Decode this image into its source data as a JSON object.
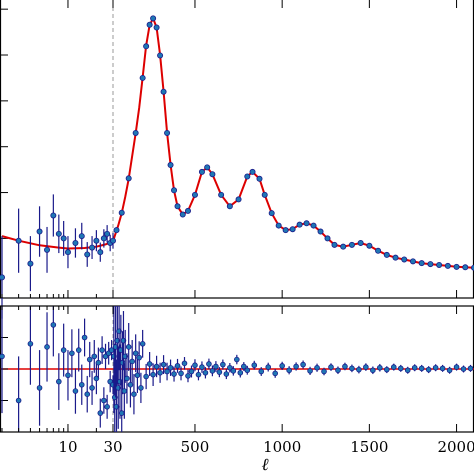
{
  "chart_data": [
    {
      "type": "scatter",
      "panel": "main",
      "title": "",
      "xlabel": "",
      "ylabel": "",
      "x_scale": "log below 30, linear above 30",
      "xlim": [
        2,
        2100
      ],
      "ylim": [
        -300,
        6200
      ],
      "pivot_line": 30,
      "grid": false,
      "series": [
        {
          "kind": "model",
          "color": "#dd0000",
          "x": [
            2,
            3,
            5,
            8,
            10,
            15,
            20,
            25,
            30,
            40,
            60,
            80,
            100,
            120,
            140,
            160,
            180,
            200,
            220,
            240,
            260,
            280,
            300,
            320,
            340,
            360,
            380,
            400,
            430,
            460,
            500,
            540,
            570,
            600,
            650,
            700,
            750,
            800,
            830,
            870,
            900,
            940,
            980,
            1020,
            1060,
            1100,
            1140,
            1180,
            1220,
            1260,
            1300,
            1350,
            1400,
            1450,
            1500,
            1550,
            1600,
            1650,
            1700,
            1800,
            1900,
            2000,
            2100
          ],
          "y": [
            1050,
            950,
            850,
            800,
            780,
            790,
            820,
            870,
            930,
            1050,
            1280,
            1550,
            1900,
            2300,
            2800,
            3300,
            3850,
            4500,
            5200,
            5650,
            5800,
            5600,
            5000,
            4200,
            3300,
            2600,
            2050,
            1700,
            1520,
            1600,
            1950,
            2450,
            2550,
            2400,
            1950,
            1700,
            1850,
            2350,
            2450,
            2300,
            1950,
            1550,
            1280,
            1180,
            1200,
            1300,
            1330,
            1280,
            1150,
            1000,
            860,
            820,
            860,
            900,
            840,
            730,
            640,
            580,
            540,
            460,
            420,
            380,
            360
          ]
        },
        {
          "kind": "measurements",
          "color": "#1f77b4",
          "edge_color": "#1a1a8a",
          "points": [
            [
              2,
              150,
              900
            ],
            [
              3,
              950,
              700
            ],
            [
              4,
              450,
              600
            ],
            [
              5,
              1150,
              550
            ],
            [
              6,
              750,
              500
            ],
            [
              7,
              1500,
              460
            ],
            [
              8,
              1100,
              420
            ],
            [
              9,
              1000,
              380
            ],
            [
              10,
              700,
              350
            ],
            [
              12,
              900,
              320
            ],
            [
              14,
              1050,
              290
            ],
            [
              16,
              650,
              270
            ],
            [
              18,
              800,
              250
            ],
            [
              20,
              950,
              230
            ],
            [
              22,
              700,
              210
            ],
            [
              24,
              1000,
              200
            ],
            [
              26,
              1100,
              190
            ],
            [
              28,
              900,
              180
            ],
            [
              30,
              950,
              170
            ],
            [
              50,
              1180,
              60
            ],
            [
              80,
              1560,
              60
            ],
            [
              120,
              2310,
              60
            ],
            [
              160,
              3300,
              60
            ],
            [
              200,
              4500,
              60
            ],
            [
              220,
              5190,
              60
            ],
            [
              240,
              5660,
              60
            ],
            [
              260,
              5800,
              60
            ],
            [
              280,
              5600,
              60
            ],
            [
              300,
              4990,
              60
            ],
            [
              320,
              4200,
              60
            ],
            [
              340,
              3300,
              60
            ],
            [
              360,
              2600,
              60
            ],
            [
              380,
              2050,
              60
            ],
            [
              400,
              1700,
              50
            ],
            [
              430,
              1520,
              50
            ],
            [
              460,
              1600,
              50
            ],
            [
              500,
              1950,
              50
            ],
            [
              540,
              2450,
              50
            ],
            [
              570,
              2550,
              50
            ],
            [
              600,
              2400,
              50
            ],
            [
              650,
              1950,
              50
            ],
            [
              700,
              1700,
              50
            ],
            [
              750,
              1850,
              50
            ],
            [
              800,
              2350,
              50
            ],
            [
              830,
              2450,
              50
            ],
            [
              870,
              2300,
              50
            ],
            [
              900,
              1950,
              50
            ],
            [
              940,
              1550,
              50
            ],
            [
              980,
              1280,
              50
            ],
            [
              1020,
              1180,
              50
            ],
            [
              1060,
              1200,
              50
            ],
            [
              1100,
              1300,
              50
            ],
            [
              1140,
              1330,
              50
            ],
            [
              1180,
              1280,
              50
            ],
            [
              1220,
              1150,
              50
            ],
            [
              1260,
              1000,
              50
            ],
            [
              1300,
              860,
              50
            ],
            [
              1350,
              820,
              50
            ],
            [
              1400,
              860,
              50
            ],
            [
              1450,
              900,
              50
            ],
            [
              1500,
              840,
              50
            ],
            [
              1550,
              730,
              50
            ],
            [
              1600,
              640,
              50
            ],
            [
              1650,
              580,
              50
            ],
            [
              1700,
              540,
              50
            ],
            [
              1750,
              500,
              50
            ],
            [
              1800,
              460,
              50
            ],
            [
              1850,
              440,
              50
            ],
            [
              1900,
              420,
              50
            ],
            [
              1950,
              400,
              50
            ],
            [
              2000,
              380,
              50
            ],
            [
              2050,
              370,
              50
            ],
            [
              2100,
              360,
              50
            ]
          ]
        }
      ]
    },
    {
      "type": "scatter",
      "panel": "residuals",
      "xlabel": "ℓ",
      "xlim": [
        2,
        2100
      ],
      "ylim": [
        -1000,
        1000
      ],
      "zero_line_color": "#dd0000",
      "series": [
        {
          "kind": "residuals",
          "color": "#1f77b4",
          "edge_color": "#1a1a8a",
          "points": [
            [
              2,
              200,
              900
            ],
            [
              3,
              -500,
              700
            ],
            [
              4,
              400,
              650
            ],
            [
              5,
              -300,
              600
            ],
            [
              6,
              350,
              550
            ],
            [
              7,
              700,
              500
            ],
            [
              8,
              -200,
              450
            ],
            [
              9,
              300,
              420
            ],
            [
              10,
              -100,
              400
            ],
            [
              11,
              250,
              380
            ],
            [
              12,
              -350,
              360
            ],
            [
              13,
              300,
              340
            ],
            [
              14,
              -250,
              320
            ],
            [
              15,
              500,
              300
            ],
            [
              16,
              -400,
              290
            ],
            [
              17,
              150,
              280
            ],
            [
              18,
              -300,
              270
            ],
            [
              19,
              200,
              260
            ],
            [
              20,
              -150,
              250
            ],
            [
              21,
              100,
              240
            ],
            [
              22,
              -700,
              230
            ],
            [
              23,
              300,
              220
            ],
            [
              24,
              -500,
              210
            ],
            [
              25,
              200,
              200
            ],
            [
              26,
              -600,
              190
            ],
            [
              27,
              250,
              180
            ],
            [
              28,
              -200,
              170
            ],
            [
              29,
              300,
              160
            ],
            [
              30,
              -250,
              150
            ],
            [
              35,
              200,
              900
            ],
            [
              40,
              -450,
              850
            ],
            [
              45,
              350,
              800
            ],
            [
              50,
              -600,
              750
            ],
            [
              55,
              450,
              700
            ],
            [
              60,
              -300,
              650
            ],
            [
              65,
              600,
              620
            ],
            [
              70,
              -200,
              590
            ],
            [
              75,
              300,
              560
            ],
            [
              80,
              -700,
              530
            ],
            [
              85,
              100,
              500
            ],
            [
              90,
              450,
              470
            ],
            [
              95,
              -350,
              440
            ],
            [
              100,
              200,
              420
            ],
            [
              110,
              -150,
              400
            ],
            [
              120,
              350,
              380
            ],
            [
              130,
              -250,
              360
            ],
            [
              140,
              120,
              340
            ],
            [
              150,
              -400,
              320
            ],
            [
              160,
              250,
              300
            ],
            [
              170,
              -100,
              280
            ],
            [
              180,
              180,
              260
            ],
            [
              190,
              -300,
              240
            ],
            [
              200,
              400,
              220
            ],
            [
              220,
              -120,
              200
            ],
            [
              240,
              80,
              190
            ],
            [
              260,
              -90,
              180
            ],
            [
              280,
              40,
              170
            ],
            [
              300,
              -60,
              160
            ],
            [
              320,
              70,
              150
            ],
            [
              340,
              -40,
              140
            ],
            [
              360,
              20,
              130
            ],
            [
              380,
              -80,
              120
            ],
            [
              400,
              50,
              110
            ],
            [
              420,
              -70,
              110
            ],
            [
              440,
              90,
              100
            ],
            [
              460,
              -110,
              100
            ],
            [
              480,
              -40,
              95
            ],
            [
              500,
              60,
              95
            ],
            [
              520,
              -90,
              90
            ],
            [
              540,
              30,
              90
            ],
            [
              560,
              -60,
              90
            ],
            [
              580,
              80,
              85
            ],
            [
              600,
              -30,
              85
            ],
            [
              620,
              40,
              85
            ],
            [
              640,
              -50,
              80
            ],
            [
              660,
              70,
              80
            ],
            [
              680,
              -80,
              80
            ],
            [
              700,
              20,
              75
            ],
            [
              720,
              -30,
              75
            ],
            [
              740,
              150,
              75
            ],
            [
              760,
              -60,
              75
            ],
            [
              780,
              40,
              70
            ],
            [
              800,
              -20,
              70
            ],
            [
              840,
              60,
              70
            ],
            [
              880,
              -40,
              70
            ],
            [
              920,
              30,
              70
            ],
            [
              960,
              -70,
              70
            ],
            [
              1000,
              50,
              65
            ],
            [
              1040,
              -20,
              65
            ],
            [
              1080,
              40,
              65
            ],
            [
              1120,
              70,
              65
            ],
            [
              1160,
              -30,
              65
            ],
            [
              1200,
              20,
              65
            ],
            [
              1240,
              -40,
              60
            ],
            [
              1280,
              30,
              60
            ],
            [
              1320,
              -20,
              60
            ],
            [
              1360,
              40,
              60
            ],
            [
              1400,
              10,
              60
            ],
            [
              1440,
              -10,
              60
            ],
            [
              1480,
              30,
              60
            ],
            [
              1520,
              -20,
              60
            ],
            [
              1560,
              20,
              60
            ],
            [
              1600,
              -10,
              55
            ],
            [
              1640,
              30,
              55
            ],
            [
              1680,
              10,
              55
            ],
            [
              1720,
              -20,
              55
            ],
            [
              1760,
              20,
              55
            ],
            [
              1800,
              10,
              55
            ],
            [
              1840,
              -10,
              55
            ],
            [
              1880,
              20,
              55
            ],
            [
              1920,
              10,
              55
            ],
            [
              1960,
              -20,
              55
            ],
            [
              2000,
              30,
              55
            ],
            [
              2040,
              0,
              55
            ],
            [
              2080,
              10,
              55
            ]
          ]
        }
      ]
    }
  ],
  "x_ticks": [
    {
      "value": 10,
      "label": "10"
    },
    {
      "value": 30,
      "label": "30"
    },
    {
      "value": 500,
      "label": "500"
    },
    {
      "value": 1000,
      "label": "1000"
    },
    {
      "value": 1500,
      "label": "1500"
    },
    {
      "value": 2000,
      "label": "2000"
    }
  ],
  "x_axis_label": "ℓ"
}
